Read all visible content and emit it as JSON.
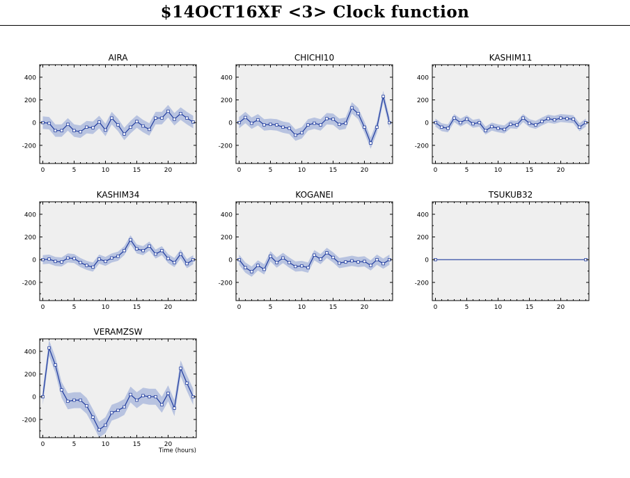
{
  "page": {
    "title": "$14OCT16XF <3>  Clock function"
  },
  "style": {
    "line_color": "#1f3b9e",
    "band_color": "#b8c3e0",
    "panel_bg": "#efefef"
  },
  "chart_data": [
    {
      "type": "line",
      "title": "AIRA",
      "xlim": [
        -0.5,
        24.5
      ],
      "ylim": [
        -360,
        510
      ],
      "xticks": [
        0,
        5,
        10,
        15,
        20
      ],
      "yticks": [
        -200,
        0,
        200,
        400
      ],
      "x": [
        0,
        1,
        2,
        3,
        4,
        5,
        6,
        7,
        8,
        9,
        10,
        11,
        12,
        13,
        14,
        15,
        16,
        17,
        18,
        19,
        20,
        21,
        22,
        23,
        24
      ],
      "y": [
        0,
        -5,
        -70,
        -70,
        -15,
        -70,
        -80,
        -40,
        -45,
        5,
        -65,
        40,
        -20,
        -100,
        -40,
        10,
        -30,
        -60,
        40,
        40,
        100,
        30,
        80,
        40,
        5
      ],
      "band": 55,
      "xlabel": ""
    },
    {
      "type": "line",
      "title": "CHICHI10",
      "xlim": [
        -0.5,
        24.5
      ],
      "ylim": [
        -360,
        510
      ],
      "xticks": [
        0,
        5,
        10,
        15,
        20
      ],
      "yticks": [
        -200,
        0,
        200,
        400
      ],
      "x": [
        0,
        1,
        2,
        3,
        4,
        5,
        6,
        7,
        8,
        9,
        10,
        11,
        12,
        13,
        14,
        15,
        16,
        17,
        18,
        19,
        20,
        21,
        22,
        23,
        24
      ],
      "y": [
        0,
        45,
        -5,
        25,
        -20,
        -15,
        -20,
        -40,
        -50,
        -110,
        -90,
        -20,
        -5,
        -20,
        35,
        30,
        -15,
        -5,
        130,
        80,
        -40,
        -180,
        -40,
        230,
        0
      ],
      "band": 50,
      "xlabel": ""
    },
    {
      "type": "line",
      "title": "KASHIM11",
      "xlim": [
        -0.5,
        24.5
      ],
      "ylim": [
        -360,
        510
      ],
      "xticks": [
        0,
        5,
        10,
        15,
        20
      ],
      "yticks": [
        -200,
        0,
        200,
        400
      ],
      "x": [
        0,
        1,
        2,
        3,
        4,
        5,
        6,
        7,
        8,
        9,
        10,
        11,
        12,
        13,
        14,
        15,
        16,
        17,
        18,
        19,
        20,
        21,
        22,
        23,
        24
      ],
      "y": [
        0,
        -40,
        -50,
        40,
        0,
        30,
        -10,
        0,
        -70,
        -35,
        -50,
        -60,
        -15,
        -20,
        40,
        -5,
        -20,
        10,
        35,
        25,
        40,
        35,
        30,
        -40,
        0
      ],
      "band": 35,
      "xlabel": ""
    },
    {
      "type": "line",
      "title": "KASHIM34",
      "xlim": [
        -0.5,
        24.5
      ],
      "ylim": [
        -360,
        510
      ],
      "xticks": [
        0,
        5,
        10,
        15,
        20
      ],
      "yticks": [
        -200,
        0,
        200,
        400
      ],
      "x": [
        0,
        1,
        2,
        3,
        4,
        5,
        6,
        7,
        8,
        9,
        10,
        11,
        12,
        13,
        14,
        15,
        16,
        17,
        18,
        19,
        20,
        21,
        22,
        23,
        24
      ],
      "y": [
        0,
        5,
        -15,
        -20,
        15,
        10,
        -25,
        -50,
        -65,
        5,
        -15,
        15,
        30,
        80,
        175,
        95,
        80,
        120,
        50,
        80,
        10,
        -25,
        50,
        -35,
        0
      ],
      "band": 40,
      "xlabel": ""
    },
    {
      "type": "line",
      "title": "KOGANEI",
      "xlim": [
        -0.5,
        24.5
      ],
      "ylim": [
        -360,
        510
      ],
      "xticks": [
        0,
        5,
        10,
        15,
        20
      ],
      "yticks": [
        -200,
        0,
        200,
        400
      ],
      "x": [
        0,
        1,
        2,
        3,
        4,
        5,
        6,
        7,
        8,
        9,
        10,
        11,
        12,
        13,
        14,
        15,
        16,
        17,
        18,
        19,
        20,
        21,
        22,
        23,
        24
      ],
      "y": [
        0,
        -70,
        -105,
        -50,
        -85,
        30,
        -25,
        15,
        -25,
        -60,
        -55,
        -70,
        40,
        5,
        60,
        20,
        -30,
        -20,
        -10,
        -20,
        -15,
        -50,
        0,
        -35,
        0
      ],
      "band": 45,
      "xlabel": ""
    },
    {
      "type": "line",
      "title": "TSUKUB32",
      "xlim": [
        -0.5,
        24.5
      ],
      "ylim": [
        -360,
        510
      ],
      "xticks": [
        0,
        5,
        10,
        15,
        20
      ],
      "yticks": [
        -200,
        0,
        200,
        400
      ],
      "x": [
        0,
        24
      ],
      "y": [
        0,
        0
      ],
      "band": 0,
      "xlabel": ""
    },
    {
      "type": "line",
      "title": "VERAMZSW",
      "xlim": [
        -0.5,
        24.5
      ],
      "ylim": [
        -360,
        510
      ],
      "xticks": [
        0,
        5,
        10,
        15,
        20
      ],
      "yticks": [
        -200,
        0,
        200,
        400
      ],
      "x": [
        0,
        1,
        2,
        3,
        4,
        5,
        6,
        7,
        8,
        9,
        10,
        11,
        12,
        13,
        14,
        15,
        16,
        17,
        18,
        19,
        20,
        21,
        22,
        23,
        24
      ],
      "y": [
        0,
        430,
        280,
        60,
        -40,
        -30,
        -30,
        -80,
        -180,
        -290,
        -250,
        -140,
        -120,
        -90,
        20,
        -30,
        10,
        0,
        0,
        -70,
        30,
        -100,
        250,
        120,
        0
      ],
      "band": 70,
      "xlabel": "Time (hours)"
    }
  ]
}
